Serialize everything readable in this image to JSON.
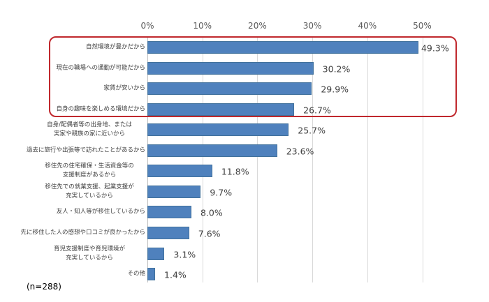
{
  "chart_data": {
    "type": "bar",
    "orientation": "horizontal",
    "title": "",
    "xlabel": "",
    "ylabel": "",
    "xlim": [
      0,
      50
    ],
    "x_ticks": [
      "0%",
      "10%",
      "20%",
      "30%",
      "40%",
      "50%"
    ],
    "grid": true,
    "legend": null,
    "categories": [
      "自然環境が豊かだから",
      "現在の職場への通勤が可能だから",
      "家賃が安いから",
      "自身の趣味を楽しめる環境だから",
      "自身/配偶者等の出身地、または実家や親族の家に近いから",
      "過去に旅行や出張等で訪れたことがあるから",
      "移住先の住宅確保・生活資金等の支援制度があるから",
      "移住先での就業支援、起業支援が充実しているから",
      "友人・知人等が移住しているから",
      "先に移住した人の感想や口コミが良かったから",
      "育児支援制度や育児環境が充実しているから",
      "その他"
    ],
    "values": [
      49.3,
      30.2,
      29.9,
      26.7,
      25.7,
      23.6,
      11.8,
      9.7,
      8.0,
      7.6,
      3.1,
      1.4
    ],
    "value_labels": [
      "49.3%",
      "30.2%",
      "29.9%",
      "26.7%",
      "25.7%",
      "23.6%",
      "11.8%",
      "9.7%",
      "8.0%",
      "7.6%",
      "3.1%",
      "1.4%"
    ],
    "highlighted_categories": [
      0,
      1,
      2,
      3
    ],
    "annotation": "(n=288)",
    "colors": {
      "bar": "#4f81bd",
      "highlight_box": "#c0282d"
    }
  },
  "labels": [
    [
      "自然環境が豊かだから"
    ],
    [
      "現在の職場への通勤が可能だから"
    ],
    [
      "家賃が安いから"
    ],
    [
      "自身の趣味を楽しめる環境だから"
    ],
    [
      "自身/配偶者等の出身地、または",
      "実家や親族の家に近いから"
    ],
    [
      "過去に旅行や出張等で訪れたことがあるから"
    ],
    [
      "移住先の住宅確保・生活資金等の",
      "支援制度があるから"
    ],
    [
      "移住先での就業支援、起業支援が",
      "充実しているから"
    ],
    [
      "友人・知人等が移住しているから"
    ],
    [
      "先に移住した人の感想や口コミが良かったから"
    ],
    [
      "育児支援制度や育児環境が",
      "充実しているから"
    ],
    [
      "その他"
    ]
  ]
}
